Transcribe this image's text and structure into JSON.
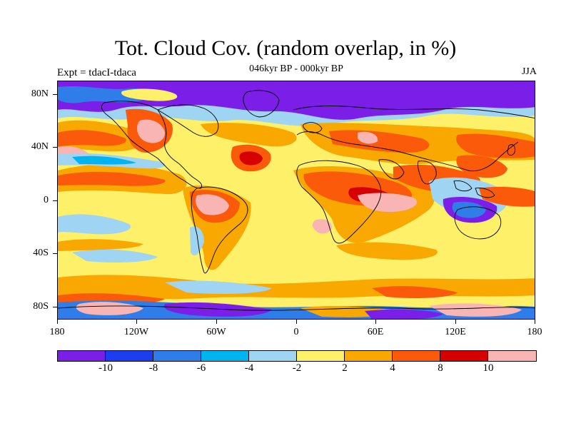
{
  "title": "Tot. Cloud Cov. (random overlap, in %)",
  "subtitle": "046kyr BP - 000kyr BP",
  "experiment": "Expt = tdacI-tdaca",
  "season": "JJA",
  "y_ticks": [
    "80N",
    "40N",
    "0",
    "40S",
    "80S"
  ],
  "x_ticks": [
    "180",
    "120W",
    "60W",
    "0",
    "60E",
    "120E",
    "180"
  ],
  "colorbar": {
    "colors": [
      "#7b1fe8",
      "#1c3ef0",
      "#2f7de8",
      "#00b4f0",
      "#9fd4f2",
      "#fff06a",
      "#f8a800",
      "#fa5a0a",
      "#d60000",
      "#f9b4b4"
    ],
    "labels": [
      "-10",
      "-8",
      "-6",
      "-4",
      "-2",
      "2",
      "4",
      "8",
      "10"
    ]
  },
  "colors": {
    "background_field": "#fff06a",
    "coastline": "#000000"
  }
}
